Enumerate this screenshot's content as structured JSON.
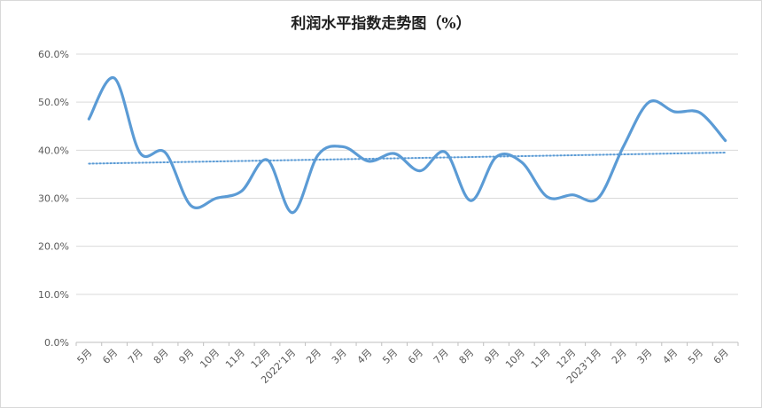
{
  "chart_data": {
    "type": "line",
    "title": "利润水平指数走势图（%）",
    "categories": [
      "5月",
      "6月",
      "7月",
      "8月",
      "9月",
      "10月",
      "11月",
      "12月",
      "2022’1月",
      "2月",
      "3月",
      "4月",
      "5月",
      "6月",
      "7月",
      "8月",
      "9月",
      "10月",
      "11月",
      "12月",
      "2023’1月",
      "2月",
      "3月",
      "4月",
      "5月",
      "6月"
    ],
    "series": [
      {
        "values": [
          46.5,
          55.0,
          39.5,
          39.5,
          28.5,
          30.0,
          31.5,
          38.0,
          27.0,
          39.0,
          40.7,
          37.7,
          39.3,
          35.7,
          39.6,
          29.5,
          38.6,
          37.5,
          30.3,
          30.7,
          30.0,
          40.8,
          50.0,
          48.0,
          47.8,
          42.0
        ],
        "color": "#5b9bd5"
      }
    ],
    "trendline": {
      "start": 37.2,
      "end": 39.5,
      "color": "#5b9bd5",
      "style": "dotted"
    },
    "yticks": [
      "0.0%",
      "10.0%",
      "20.0%",
      "30.0%",
      "40.0%",
      "50.0%",
      "60.0%"
    ],
    "ylim": [
      0,
      60
    ],
    "grid": true,
    "legend": "none"
  }
}
